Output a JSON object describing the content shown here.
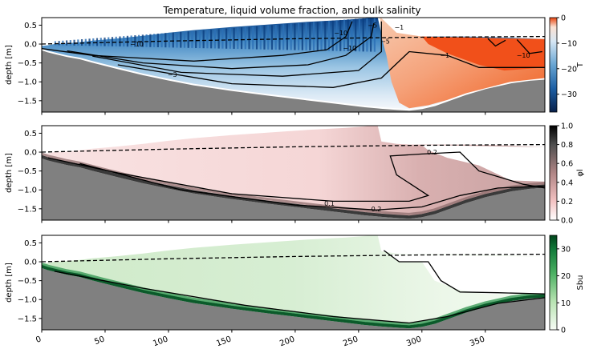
{
  "figure": {
    "title": "Temperature, liquid volume fraction, and bulk salinity"
  },
  "colors": {
    "land": "#808080",
    "ice_white": "#ffffff",
    "warm_orange": "#f1501a",
    "contour": "#000000"
  },
  "chart_data": [
    {
      "type": "heatmap",
      "panel": "temperature",
      "title": "Temperature, liquid volume fraction, and bulk salinity",
      "xlabel": "",
      "ylabel": "depth [m]",
      "xlim": [
        0,
        397
      ],
      "ylim": [
        -1.8,
        0.7
      ],
      "yticks": [
        0.5,
        0.0,
        -0.5,
        -1.0,
        -1.5
      ],
      "ytick_labels": [
        "0.5",
        "0.0",
        "−0.5",
        "−1.0",
        "−1.5"
      ],
      "colorbar": {
        "label": "T",
        "colormap": "RdBu_r (blue to white to orange-red)",
        "range": [
          -37,
          0
        ],
        "ticks": [
          0,
          -10,
          -20,
          -30
        ],
        "tick_labels": [
          "0",
          "−10",
          "−20",
          "−30"
        ]
      },
      "contour_levels": [
        -10,
        -5,
        -3,
        -1
      ],
      "contour_labels": [
        {
          "text": "−10",
          "x": 243,
          "y": -0.1
        },
        {
          "text": "−10",
          "x": 75,
          "y": 0.0
        },
        {
          "text": "−3",
          "x": 103,
          "y": -0.8
        },
        {
          "text": "−5",
          "x": 261,
          "y": 0.5
        },
        {
          "text": "−5",
          "x": 271,
          "y": 0.07
        },
        {
          "text": "−1",
          "x": 282,
          "y": 0.45
        },
        {
          "text": "−1",
          "x": 318,
          "y": -0.3
        },
        {
          "text": "−10",
          "x": 236,
          "y": 0.3
        },
        {
          "text": "−10",
          "x": 380,
          "y": -0.3
        }
      ]
    },
    {
      "type": "heatmap",
      "panel": "liquid volume fraction",
      "xlabel": "",
      "ylabel": "depth [m]",
      "xlim": [
        0,
        397
      ],
      "ylim": [
        -1.8,
        0.7
      ],
      "yticks": [
        0.5,
        0.0,
        -0.5,
        -1.0,
        -1.5
      ],
      "ytick_labels": [
        "0.5",
        "0.0",
        "−0.5",
        "−1.0",
        "−1.5"
      ],
      "colorbar": {
        "label": "φl",
        "colormap": "white to pink to dark grey",
        "range": [
          0,
          1
        ],
        "ticks": [
          0.0,
          0.2,
          0.4,
          0.6,
          0.8,
          1.0
        ],
        "tick_labels": [
          "0.0",
          "0.2",
          "0.4",
          "0.6",
          "0.8",
          "1.0"
        ]
      },
      "contour_levels": [
        0.1,
        0.2
      ],
      "contour_labels": [
        {
          "text": "0.1",
          "x": 227,
          "y": -1.35
        },
        {
          "text": "0.2",
          "x": 264,
          "y": -1.5
        },
        {
          "text": "0.2",
          "x": 308,
          "y": 0.0
        }
      ]
    },
    {
      "type": "heatmap",
      "panel": "bulk salinity",
      "xlabel": "",
      "ylabel": "depth [m]",
      "xlim": [
        0,
        397
      ],
      "ylim": [
        -1.8,
        0.7
      ],
      "yticks": [
        0.5,
        0.0,
        -0.5,
        -1.0,
        -1.5
      ],
      "ytick_labels": [
        "0.5",
        "0.0",
        "−0.5",
        "−1.0",
        "−1.5"
      ],
      "xticks": [
        0,
        50,
        100,
        150,
        200,
        250,
        300,
        350
      ],
      "xtick_labels": [
        "0",
        "50",
        "100",
        "150",
        "200",
        "250",
        "300",
        "350"
      ],
      "colorbar": {
        "label": "Sbu",
        "colormap": "Greens",
        "range": [
          0,
          35
        ],
        "ticks": [
          0,
          10,
          20,
          30
        ],
        "tick_labels": [
          "0",
          "10",
          "20",
          "30"
        ]
      }
    }
  ]
}
